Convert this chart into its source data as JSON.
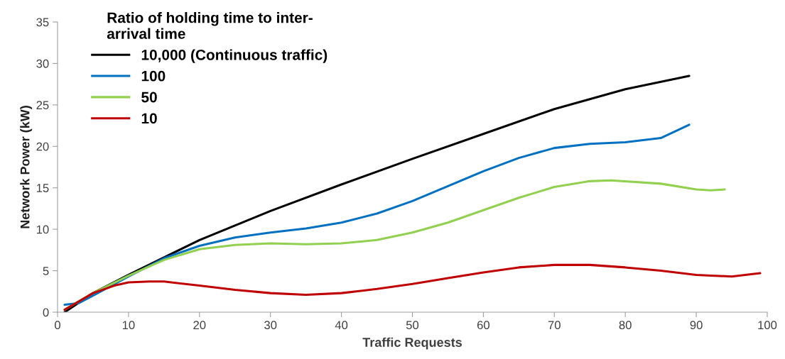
{
  "chart_data": {
    "type": "line",
    "xlabel": "Traffic Requests",
    "ylabel": "Network Power (kW)",
    "legend_title": "Ratio of holding time to inter-\narrival time",
    "legend": "top left",
    "grid": false,
    "xlim": [
      0,
      100
    ],
    "ylim": [
      0,
      35
    ],
    "xticks": [
      0,
      10,
      20,
      30,
      40,
      50,
      60,
      70,
      80,
      90,
      100
    ],
    "yticks": [
      0,
      5,
      10,
      15,
      20,
      25,
      30,
      35
    ],
    "series": [
      {
        "name": "10,000 (Continuous traffic)",
        "color": "#000000",
        "x": [
          1,
          5,
          10,
          20,
          30,
          40,
          50,
          60,
          70,
          80,
          89
        ],
        "values": [
          0,
          2.3,
          4.5,
          8.7,
          12.2,
          15.4,
          18.5,
          21.5,
          24.5,
          26.9,
          28.5
        ]
      },
      {
        "name": "100",
        "color": "#0070c0",
        "x": [
          1,
          3,
          5,
          10,
          15,
          20,
          25,
          30,
          35,
          40,
          45,
          50,
          55,
          60,
          65,
          70,
          75,
          80,
          85,
          89
        ],
        "values": [
          0.9,
          1.1,
          2.0,
          4.3,
          6.5,
          8.0,
          9.0,
          9.6,
          10.1,
          10.8,
          11.9,
          13.4,
          15.2,
          17.0,
          18.6,
          19.8,
          20.3,
          20.5,
          21.0,
          22.6
        ]
      },
      {
        "name": "50",
        "color": "#92d050",
        "x": [
          1,
          5,
          10,
          15,
          20,
          25,
          30,
          35,
          40,
          45,
          50,
          55,
          60,
          65,
          70,
          75,
          78,
          85,
          90,
          92,
          94
        ],
        "values": [
          0.3,
          2.3,
          4.4,
          6.3,
          7.6,
          8.1,
          8.3,
          8.2,
          8.3,
          8.7,
          9.6,
          10.8,
          12.3,
          13.8,
          15.1,
          15.8,
          15.9,
          15.5,
          14.8,
          14.7,
          14.8
        ]
      },
      {
        "name": "10",
        "color": "#c00000",
        "x": [
          1,
          3,
          5,
          8,
          10,
          13,
          15,
          20,
          25,
          30,
          35,
          40,
          45,
          50,
          55,
          60,
          65,
          70,
          75,
          80,
          85,
          90,
          95,
          99
        ],
        "values": [
          0.3,
          1.3,
          2.3,
          3.2,
          3.6,
          3.7,
          3.7,
          3.2,
          2.7,
          2.3,
          2.1,
          2.3,
          2.8,
          3.4,
          4.1,
          4.8,
          5.4,
          5.7,
          5.7,
          5.4,
          5.0,
          4.5,
          4.3,
          4.7
        ]
      }
    ]
  }
}
